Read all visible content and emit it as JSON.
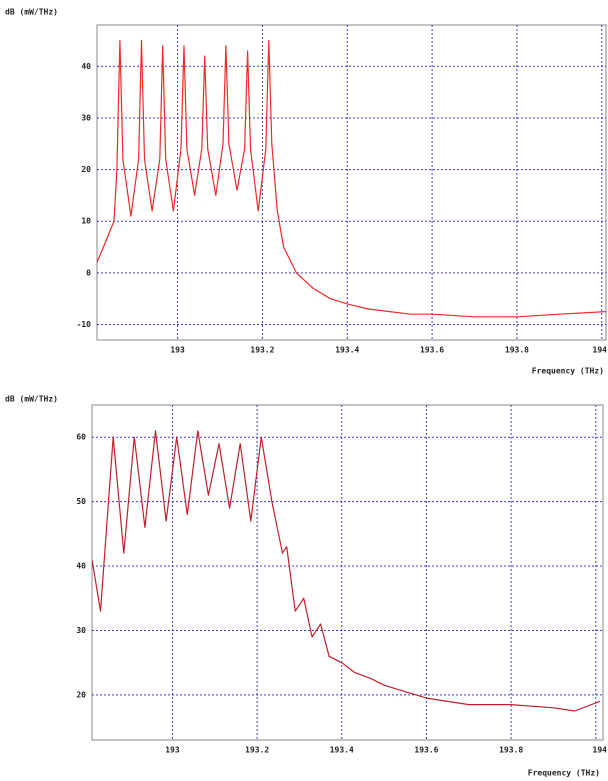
{
  "chart_data": [
    {
      "type": "line",
      "y_label": "dB (mW/THz)",
      "x_label": "Frequency (THz)",
      "xlim": [
        192.81,
        194.01
      ],
      "xticks": [
        193,
        193.2,
        193.4,
        193.6,
        193.8,
        194
      ],
      "ylim": [
        -13,
        48
      ],
      "yticks": [
        -10,
        0,
        10,
        20,
        30,
        40
      ],
      "grid": true,
      "series": [
        {
          "color": "#ee2a2a",
          "x": [
            192.81,
            192.83,
            192.85,
            192.857,
            192.864,
            192.871,
            192.89,
            192.908,
            192.915,
            192.922,
            192.94,
            192.958,
            192.965,
            192.972,
            192.99,
            193.008,
            193.015,
            193.022,
            193.04,
            193.057,
            193.064,
            193.071,
            193.09,
            193.107,
            193.114,
            193.121,
            193.14,
            193.158,
            193.165,
            193.172,
            193.19,
            193.208,
            193.215,
            193.222,
            193.235,
            193.25,
            193.28,
            193.32,
            193.36,
            193.4,
            193.45,
            193.5,
            193.55,
            193.6,
            193.7,
            193.8,
            193.9,
            194.01
          ],
          "values": [
            2,
            6,
            10,
            20,
            45,
            22,
            11,
            22,
            45,
            22,
            12,
            22,
            44,
            22,
            12,
            24,
            44,
            24,
            15,
            24,
            42,
            24,
            15,
            25,
            44,
            25,
            16,
            24,
            43,
            24,
            12,
            24,
            45,
            25,
            12,
            5,
            0,
            -3,
            -5,
            -6,
            -7,
            -7.5,
            -8,
            -8,
            -8.5,
            -8.5,
            -8,
            -7.5
          ]
        }
      ]
    },
    {
      "type": "line",
      "y_label": "dB (mW/THz)",
      "x_label": "Frequency (THz)",
      "xlim": [
        192.81,
        194.017
      ],
      "xticks": [
        193,
        193.2,
        193.4,
        193.6,
        193.8,
        194
      ],
      "ylim": [
        13,
        65
      ],
      "yticks": [
        20,
        30,
        40,
        50,
        60
      ],
      "grid": true,
      "series": [
        {
          "color": "#c0202a",
          "x": [
            192.81,
            192.83,
            192.86,
            192.885,
            192.91,
            192.935,
            192.96,
            192.985,
            193.01,
            193.035,
            193.06,
            193.085,
            193.11,
            193.135,
            193.16,
            193.185,
            193.21,
            193.235,
            193.26,
            193.27,
            193.29,
            193.31,
            193.33,
            193.35,
            193.37,
            193.4,
            193.43,
            193.47,
            193.5,
            193.55,
            193.6,
            193.7,
            193.8,
            193.9,
            193.95,
            194.01
          ],
          "values": [
            41,
            33,
            60,
            42,
            60,
            46,
            61,
            47,
            60,
            48,
            61,
            51,
            59,
            49,
            59,
            47,
            60,
            50,
            42,
            43,
            33,
            35,
            29,
            31,
            26,
            25,
            23.5,
            22.5,
            21.5,
            20.5,
            19.5,
            18.5,
            18.5,
            18,
            17.5,
            19
          ]
        }
      ]
    }
  ]
}
